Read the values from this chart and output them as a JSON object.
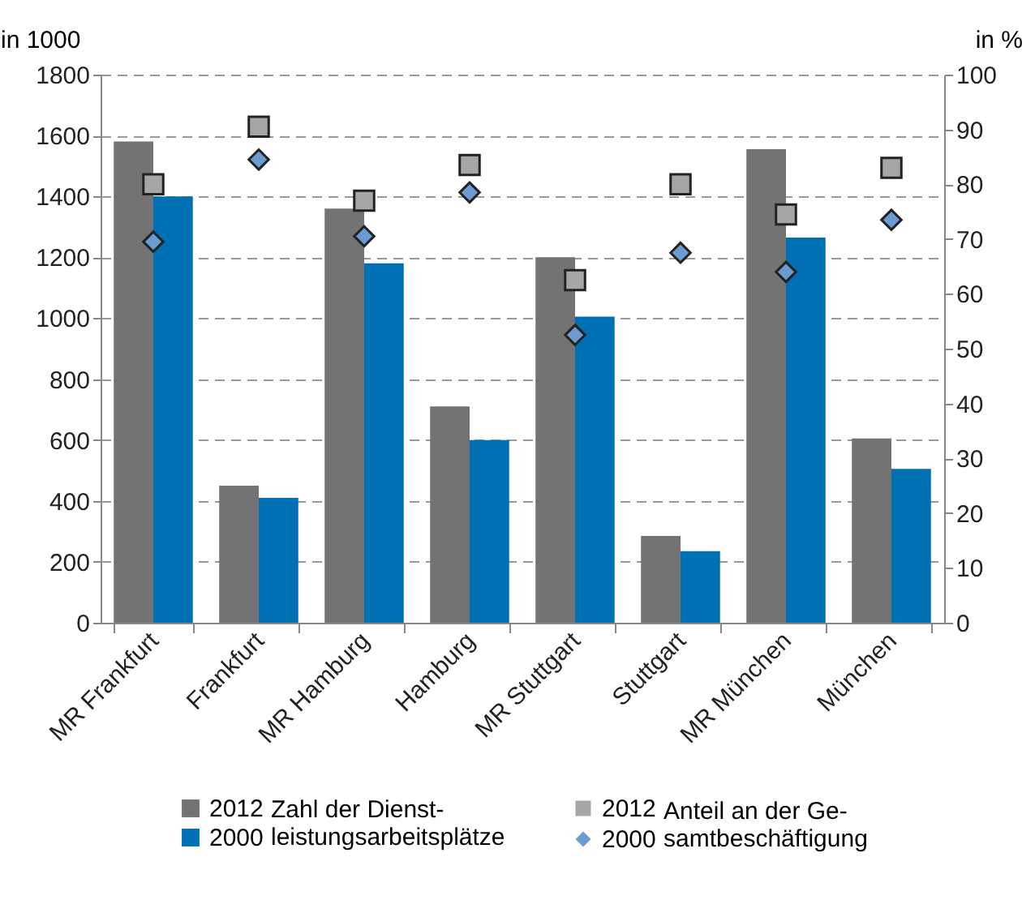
{
  "chart_data": {
    "type": "bar",
    "ylabel": "in 1000",
    "y2label": "in %",
    "categories": [
      "MR Frankfurt",
      "Frankfurt",
      "MR Hamburg",
      "Hamburg",
      "MR Stuttgart",
      "Stuttgart",
      "MR München",
      "München"
    ],
    "series": [
      {
        "name": "2012",
        "color": "#737373",
        "values": [
          1580,
          450,
          1360,
          710,
          1200,
          285,
          1555,
          605
        ]
      },
      {
        "name": "2000",
        "color": "#0070b5",
        "values": [
          1400,
          410,
          1180,
          600,
          1005,
          235,
          1265,
          505
        ]
      },
      {
        "name": "2012",
        "type": "scatter",
        "axis": "y2",
        "marker": "square",
        "color": "#a6a6a6",
        "values": [
          80,
          90.5,
          77,
          83.5,
          62.5,
          80,
          74.5,
          83
        ]
      },
      {
        "name": "2000",
        "type": "scatter",
        "axis": "y2",
        "marker": "diamond",
        "color": "#6b9bd1",
        "values": [
          69.5,
          84.5,
          70.5,
          78.5,
          52.5,
          67.5,
          64,
          73.5
        ]
      }
    ],
    "annotations": [
      "Zahl der Dienst-\nleistungsarbeitsplätze",
      "Anteil an der Ge-\nsamtbeschäftigung"
    ],
    "ylim": [
      0,
      1800
    ],
    "yticks": [
      0,
      200,
      400,
      600,
      800,
      1000,
      1200,
      1400,
      1600,
      1800
    ],
    "y2lim": [
      0,
      100
    ],
    "y2ticks": [
      0,
      10,
      20,
      30,
      40,
      50,
      60,
      70,
      80,
      90,
      100
    ],
    "grid": "y",
    "legend": "bottom"
  }
}
